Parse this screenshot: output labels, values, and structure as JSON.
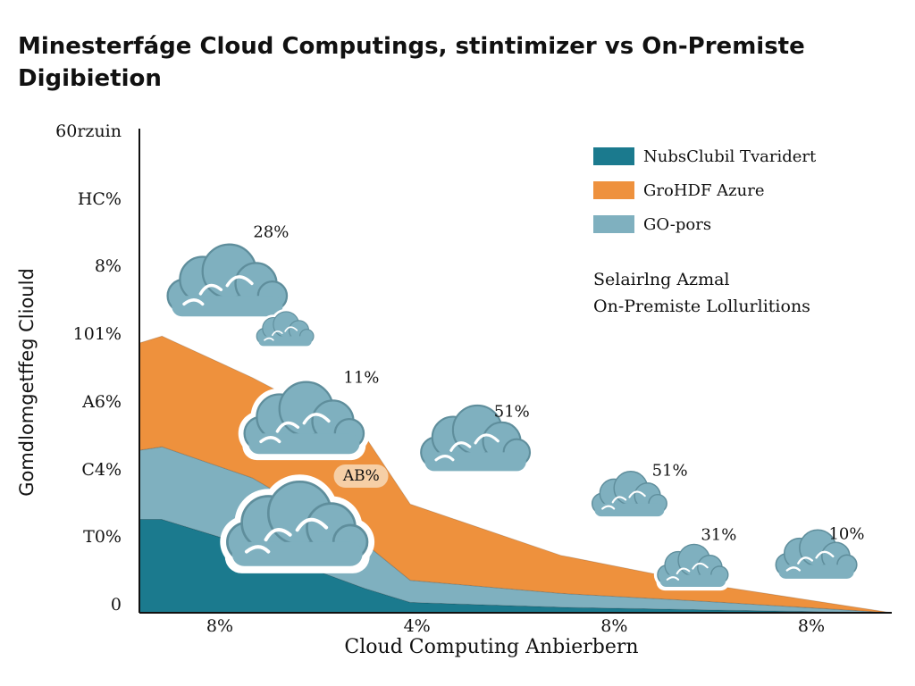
{
  "title_lines": [
    "Minesterfáge Cloud Computings, stintimizer vs On-Premiste",
    "Digibietion"
  ],
  "note_lines": [
    "Selairlng Azmal",
    "On-Premiste Lollurlitions"
  ],
  "colors": {
    "series_1": "#1b7a8e",
    "series_2": "#ee913d",
    "series_3": "#7fb0bf",
    "cloud_fill": "#7fb0bf",
    "cloud_stroke": "#5f8e9c",
    "axis": "#111111"
  },
  "chart_data": {
    "type": "area",
    "stacked": true,
    "title": "Minesterfáge Cloud Computings, stintimizer vs On-Premiste Digibietion",
    "xlabel": "Cloud Computing Anbierbern",
    "ylabel": "Gomdlomgetffeg Cliould",
    "y_tick_labels": [
      "60rzuin",
      "HC%",
      "8%",
      "101%",
      "A6%",
      "C4%",
      "T0%",
      "0"
    ],
    "x_tick_labels": [
      "8%",
      "4%",
      "8%",
      "8%"
    ],
    "x": [
      0,
      0.3,
      1.5,
      3.0,
      3.6,
      5.6,
      7.6,
      10.0
    ],
    "xlim": [
      0,
      10
    ],
    "ylim": [
      0,
      7
    ],
    "series": [
      {
        "name": "NubsClubil Tvaridert",
        "values": [
          1.35,
          1.35,
          0.95,
          0.35,
          0.15,
          0.08,
          0.04,
          0.0
        ]
      },
      {
        "name": "GO-pors",
        "values": [
          1.0,
          1.05,
          1.0,
          0.65,
          0.32,
          0.2,
          0.12,
          0.0
        ]
      },
      {
        "name": "GroHDF Azure",
        "values": [
          1.55,
          1.6,
          1.45,
          1.55,
          1.1,
          0.55,
          0.24,
          0.0
        ]
      }
    ],
    "legend": {
      "position": "top-right",
      "entries": [
        {
          "label": "NubsClubil Tvaridert",
          "color": "#1b7a8e"
        },
        {
          "label": "GroHDF Azure",
          "color": "#ee913d"
        },
        {
          "label": "GO-pors",
          "color": "#7fb0bf"
        }
      ]
    },
    "annotations": [
      {
        "text": "28%",
        "x": 1.75,
        "y": 5.5
      },
      {
        "text": "11%",
        "x": 2.95,
        "y": 3.4
      },
      {
        "text": "AB%",
        "x": 2.95,
        "y": 1.97,
        "style": "badge"
      },
      {
        "text": "51%",
        "x": 4.95,
        "y": 2.9
      },
      {
        "text": "51%",
        "x": 7.05,
        "y": 2.05
      },
      {
        "text": "31%",
        "x": 7.7,
        "y": 1.12
      },
      {
        "text": "10%",
        "x": 9.4,
        "y": 1.14
      }
    ],
    "grid": false
  }
}
